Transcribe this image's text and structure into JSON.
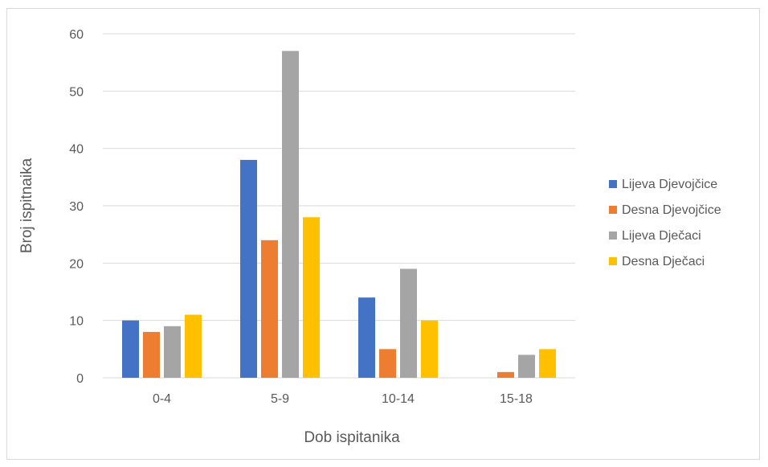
{
  "chart_data": {
    "type": "bar",
    "categories": [
      "0-4",
      "5-9",
      "10-14",
      "15-18"
    ],
    "series": [
      {
        "name": "Lijeva Djevojčice",
        "values": [
          10,
          38,
          14,
          0
        ],
        "color": "#4472c4"
      },
      {
        "name": "Desna Djevojčice",
        "values": [
          8,
          24,
          5,
          1
        ],
        "color": "#ed7d31"
      },
      {
        "name": "Lijeva Dječaci",
        "values": [
          9,
          57,
          19,
          4
        ],
        "color": "#a5a5a5"
      },
      {
        "name": "Desna Dječaci",
        "values": [
          11,
          28,
          10,
          5
        ],
        "color": "#ffc000"
      }
    ],
    "xlabel": "Dob ispitanika",
    "ylabel": "Broj ispitnaika",
    "ylim": [
      0,
      60
    ],
    "yticks": [
      0,
      10,
      20,
      30,
      40,
      50,
      60
    ],
    "grid": true,
    "legend": "right"
  }
}
